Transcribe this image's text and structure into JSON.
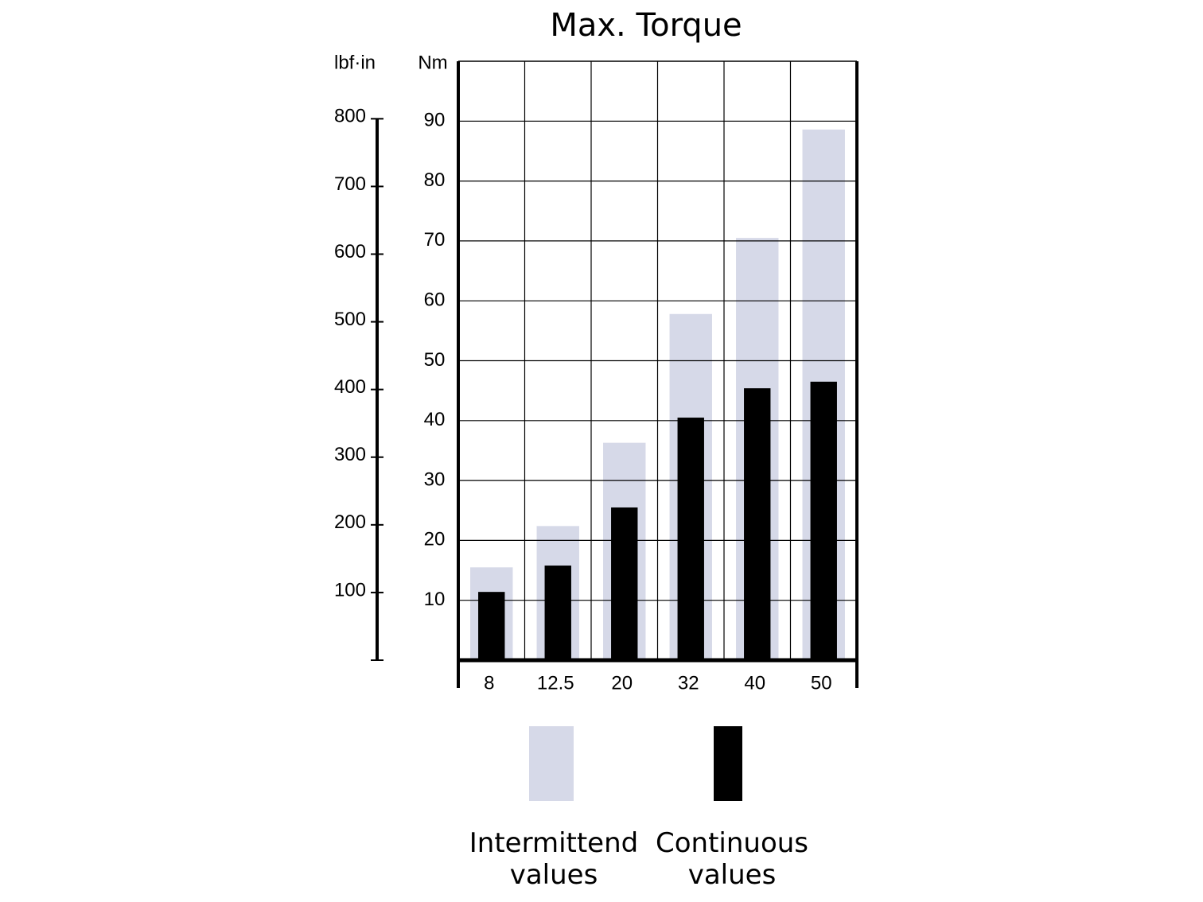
{
  "chart_data": {
    "type": "bar",
    "title": "Max. Torque",
    "y_label": "Nm",
    "y2_label": "lbf·in",
    "categories": [
      "8",
      "12.5",
      "20",
      "32",
      "40",
      "50"
    ],
    "series": [
      {
        "name": "Intermittend values",
        "color": "#d6d9e8",
        "values": [
          15.5,
          22.4,
          36.3,
          57.8,
          70.5,
          88.6
        ]
      },
      {
        "name": "Continuous values",
        "color": "#000000",
        "values": [
          11.4,
          15.8,
          25.5,
          40.5,
          45.4,
          46.5
        ]
      }
    ],
    "ylim": [
      0,
      100
    ],
    "yticks": [
      10,
      20,
      30,
      40,
      50,
      60,
      70,
      80,
      90
    ],
    "y2lim": [
      0,
      885
    ],
    "y2ticks": [
      100,
      200,
      300,
      400,
      500,
      600,
      700,
      800
    ],
    "grid": true
  }
}
